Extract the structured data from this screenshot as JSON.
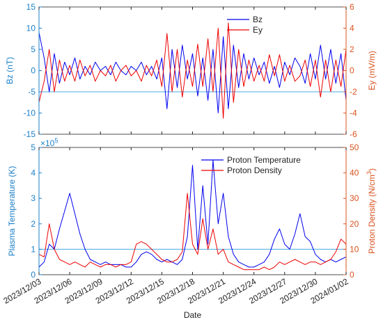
{
  "colors": {
    "blue": "#0000ee",
    "red": "#ee0000",
    "left_axis": "#1a7fc8",
    "right_axis": "#d9531e",
    "ref_line": "#4aa8e0",
    "frame": "#222222"
  },
  "chart_data": [
    {
      "type": "line",
      "x_unit": "days since 2023/12/03",
      "xlim": [
        0,
        30
      ],
      "left_axis": {
        "label": "Bz (nT)",
        "lim": [
          -15,
          15
        ],
        "ticks": [
          -15,
          -10,
          -5,
          0,
          5,
          10,
          15
        ]
      },
      "right_axis": {
        "label": "Ey (mV/m)",
        "lim": [
          -6,
          6
        ],
        "ticks": [
          -6,
          -4,
          -2,
          0,
          2,
          4,
          6
        ]
      },
      "reference_line": {
        "axis": "left",
        "value": -5
      },
      "legend": {
        "position": "top-right",
        "entries": [
          "Bz",
          "Ey"
        ]
      },
      "series": [
        {
          "name": "Bz",
          "axis": "left",
          "color": "blue",
          "x": [
            0,
            0.5,
            1,
            1.5,
            2,
            2.5,
            3,
            3.5,
            4,
            4.5,
            5,
            5.5,
            6,
            6.5,
            7,
            7.5,
            8,
            8.5,
            9,
            9.5,
            10,
            10.5,
            11,
            11.5,
            12,
            12.5,
            13,
            13.5,
            14,
            14.5,
            15,
            15.5,
            16,
            16.5,
            17,
            17.5,
            18,
            18.5,
            19,
            19.5,
            20,
            20.5,
            21,
            21.5,
            22,
            22.5,
            23,
            23.5,
            24,
            24.5,
            25,
            25.5,
            26,
            26.5,
            27,
            27.5,
            28,
            28.5,
            29,
            29.5,
            30
          ],
          "y": [
            9,
            3,
            -5,
            4,
            -3,
            2,
            -1,
            3,
            -2,
            1,
            -1,
            2,
            0,
            1,
            -1,
            2,
            0,
            -1,
            1,
            0,
            2,
            -1,
            1,
            -2,
            3,
            -9,
            5,
            -4,
            6,
            -2,
            4,
            -6,
            3,
            -7,
            5,
            -10,
            8,
            -9,
            6,
            -4,
            4,
            -2,
            3,
            -1,
            2,
            -3,
            1,
            -4,
            2,
            -1,
            3,
            1,
            -3,
            4,
            -2,
            6,
            -2,
            5,
            -3,
            4,
            -7
          ]
        },
        {
          "name": "Ey",
          "axis": "right",
          "color": "red",
          "x": [
            0,
            0.5,
            1,
            1.5,
            2,
            2.5,
            3,
            3.5,
            4,
            4.5,
            5,
            5.5,
            6,
            6.5,
            7,
            7.5,
            8,
            8.5,
            9,
            9.5,
            10,
            10.5,
            11,
            11.5,
            12,
            12.5,
            13,
            13.5,
            14,
            14.5,
            15,
            15.5,
            16,
            16.5,
            17,
            17.5,
            18,
            18.5,
            19,
            19.5,
            20,
            20.5,
            21,
            21.5,
            22,
            22.5,
            23,
            23.5,
            24,
            24.5,
            25,
            25.5,
            26,
            26.5,
            27,
            27.5,
            28,
            28.5,
            29,
            29.5,
            30
          ],
          "y": [
            -3,
            -1,
            2,
            -2,
            1,
            -1,
            0.5,
            -1,
            1,
            -0.5,
            0.5,
            -1,
            0,
            -0.5,
            0.5,
            -1,
            0,
            0.5,
            -0.5,
            0,
            -1,
            0.5,
            -0.5,
            1,
            -1.5,
            3.5,
            -2,
            2,
            -2.5,
            1,
            -1.5,
            2.5,
            -1.5,
            3,
            -2,
            4,
            -4.5,
            4.5,
            -3,
            2,
            -1.5,
            1,
            -1,
            0.5,
            -1,
            1.5,
            -0.5,
            1.5,
            -1,
            0.5,
            -1,
            -0.5,
            1,
            -1.5,
            1,
            -2.5,
            1,
            -2,
            1,
            -1.5,
            2
          ]
        }
      ]
    },
    {
      "type": "line",
      "x_unit": "days since 2023/12/03",
      "xlim": [
        0,
        30
      ],
      "xlabel": "Date",
      "x_ticks": [
        {
          "x": 0,
          "label": "2023/12/03"
        },
        {
          "x": 3,
          "label": "2023/12/06"
        },
        {
          "x": 6,
          "label": "2023/12/09"
        },
        {
          "x": 9,
          "label": "2023/12/12"
        },
        {
          "x": 12,
          "label": "2023/12/15"
        },
        {
          "x": 15,
          "label": "2023/12/18"
        },
        {
          "x": 18,
          "label": "2023/12/21"
        },
        {
          "x": 21,
          "label": "2023/12/24"
        },
        {
          "x": 24,
          "label": "2023/12/27"
        },
        {
          "x": 27,
          "label": "2023/12/30"
        },
        {
          "x": 30,
          "label": "2024/01/02"
        }
      ],
      "left_axis": {
        "label": "Plasma Temperature (K)",
        "lim": [
          0,
          5
        ],
        "ticks": [
          0,
          1,
          2,
          3,
          4,
          5
        ],
        "multiplier": "×10",
        "exponent": "5"
      },
      "right_axis": {
        "label": "Proton Density (N/cm",
        "label_sup": "3",
        "label_end": ")",
        "lim": [
          0,
          50
        ],
        "ticks": [
          0,
          10,
          20,
          30,
          40,
          50
        ]
      },
      "reference_line": {
        "axis": "left",
        "value": 1
      },
      "legend": {
        "position": "top-right",
        "entries": [
          "Proton Temperature",
          "Proton Density"
        ]
      },
      "series": [
        {
          "name": "Proton Temperature",
          "axis": "left",
          "color": "blue",
          "x": [
            0,
            0.5,
            1,
            1.5,
            2,
            2.5,
            3,
            3.5,
            4,
            4.5,
            5,
            5.5,
            6,
            6.5,
            7,
            7.5,
            8,
            8.5,
            9,
            9.5,
            10,
            10.5,
            11,
            11.5,
            12,
            12.5,
            13,
            13.5,
            14,
            14.5,
            15,
            15.5,
            16,
            16.5,
            17,
            17.5,
            18,
            18.5,
            19,
            19.5,
            20,
            20.5,
            21,
            21.5,
            22,
            22.5,
            23,
            23.5,
            24,
            24.5,
            25,
            25.5,
            26,
            26.5,
            27,
            27.5,
            28,
            28.5,
            29,
            29.5,
            30
          ],
          "y": [
            0.3,
            0.5,
            1.2,
            1.0,
            1.8,
            2.5,
            3.2,
            2.4,
            1.6,
            1.0,
            0.6,
            0.5,
            0.4,
            0.5,
            0.4,
            0.4,
            0.4,
            0.3,
            0.3,
            0.5,
            0.8,
            0.9,
            0.8,
            0.6,
            0.5,
            0.6,
            0.5,
            0.4,
            0.6,
            1.5,
            4.3,
            1.0,
            3.5,
            1.2,
            4.5,
            2.0,
            3.2,
            1.5,
            0.8,
            0.5,
            0.4,
            0.3,
            0.3,
            0.4,
            0.5,
            0.8,
            1.4,
            1.8,
            1.2,
            1.0,
            1.6,
            2.4,
            1.5,
            1.3,
            0.8,
            0.6,
            0.5,
            0.6,
            0.5,
            0.6,
            0.7
          ]
        },
        {
          "name": "Proton Density",
          "axis": "right",
          "color": "red",
          "x": [
            0,
            0.5,
            1,
            1.5,
            2,
            2.5,
            3,
            3.5,
            4,
            4.5,
            5,
            5.5,
            6,
            6.5,
            7,
            7.5,
            8,
            8.5,
            9,
            9.5,
            10,
            10.5,
            11,
            11.5,
            12,
            12.5,
            13,
            13.5,
            14,
            14.5,
            15,
            15.5,
            16,
            16.5,
            17,
            17.5,
            18,
            18.5,
            19,
            19.5,
            20,
            20.5,
            21,
            21.5,
            22,
            22.5,
            23,
            23.5,
            24,
            24.5,
            25,
            25.5,
            26,
            26.5,
            27,
            27.5,
            28,
            28.5,
            29,
            29.5,
            30
          ],
          "y": [
            8,
            7,
            20,
            10,
            6,
            5,
            4,
            5,
            4,
            3,
            5,
            4,
            3,
            4,
            4,
            3,
            4,
            4,
            5,
            12,
            13,
            12,
            10,
            8,
            6,
            5,
            5,
            6,
            9,
            32,
            12,
            8,
            22,
            10,
            18,
            8,
            10,
            5,
            4,
            3,
            2,
            2,
            2,
            2,
            3,
            2,
            3,
            5,
            4,
            5,
            6,
            5,
            4,
            5,
            5,
            4,
            5,
            6,
            9,
            14,
            12
          ]
        }
      ]
    }
  ]
}
